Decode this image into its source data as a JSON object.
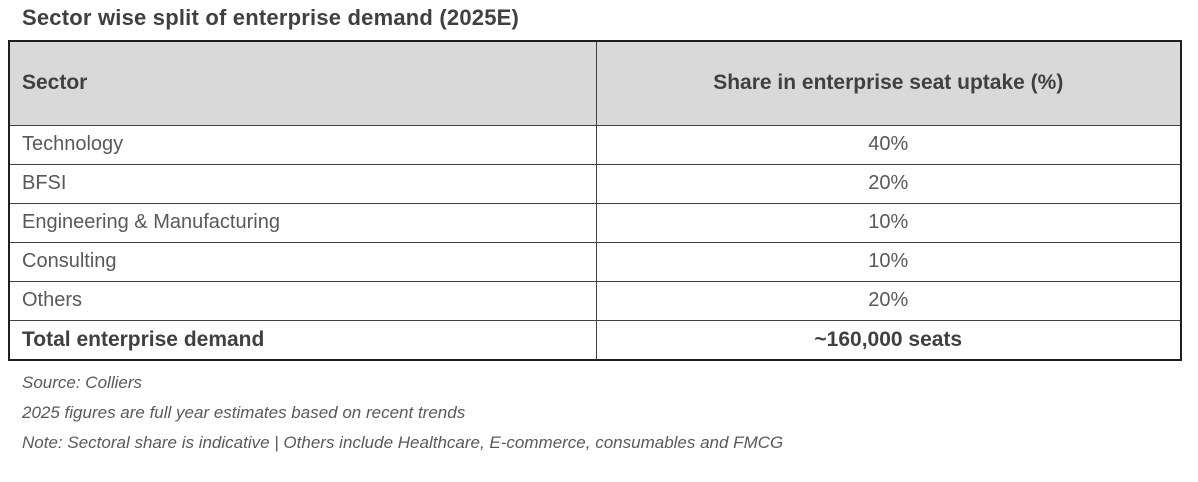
{
  "title": "Sector wise split of enterprise demand (2025E)",
  "colors": {
    "page_bg": "#ffffff",
    "header_bg": "#d9d9d9",
    "border_outer": "#1f1f1f",
    "border_inner": "#404040",
    "text_strong": "#404040",
    "text_body": "#595959"
  },
  "table": {
    "columns": [
      {
        "label": "Sector"
      },
      {
        "label": "Share in enterprise seat uptake (%)"
      }
    ],
    "rows": [
      {
        "sector": "Technology",
        "share": "40%"
      },
      {
        "sector": "BFSI",
        "share": "20%"
      },
      {
        "sector": "Engineering & Manufacturing",
        "share": "10%"
      },
      {
        "sector": "Consulting",
        "share": "10%"
      },
      {
        "sector": "Others",
        "share": "20%"
      }
    ],
    "total_row": {
      "label": "Total enterprise demand",
      "value": "~160,000 seats"
    }
  },
  "notes": [
    "Source: Colliers",
    "2025 figures are full year estimates based on recent trends",
    "Note: Sectoral share is indicative | Others include Healthcare, E-commerce, consumables and FMCG"
  ],
  "chart_data": {
    "type": "table",
    "title": "Sector wise split of enterprise demand (2025E)",
    "columns": [
      "Sector",
      "Share in enterprise seat uptake (%)"
    ],
    "categories": [
      "Technology",
      "BFSI",
      "Engineering & Manufacturing",
      "Consulting",
      "Others"
    ],
    "values": [
      40,
      20,
      10,
      10,
      20
    ],
    "unit": "%",
    "total": {
      "label": "Total enterprise demand",
      "value": "~160,000 seats"
    },
    "source": "Colliers",
    "notes": [
      "2025 figures are full year estimates based on recent trends",
      "Sectoral share is indicative",
      "Others include Healthcare, E-commerce, consumables and FMCG"
    ]
  }
}
